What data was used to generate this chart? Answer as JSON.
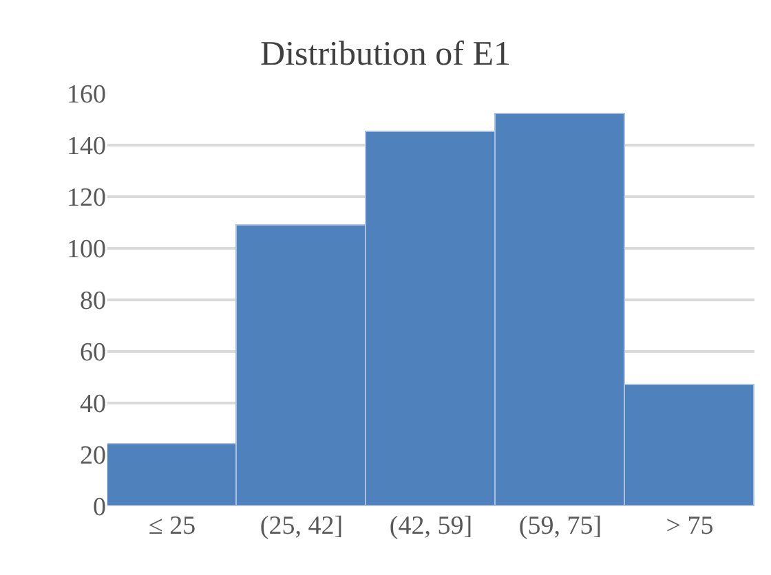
{
  "chart_data": {
    "type": "bar",
    "title": "Distribution of E1",
    "categories": [
      "≤ 25",
      "(25, 42]",
      "(42, 59]",
      "(59, 75]",
      "> 75"
    ],
    "values": [
      24,
      109,
      145,
      152,
      47
    ],
    "color": "#4f81bd",
    "ylim": [
      0,
      160
    ],
    "yticks": [
      0,
      20,
      40,
      60,
      80,
      100,
      120,
      140,
      160
    ],
    "grid": "y",
    "legend": false
  }
}
